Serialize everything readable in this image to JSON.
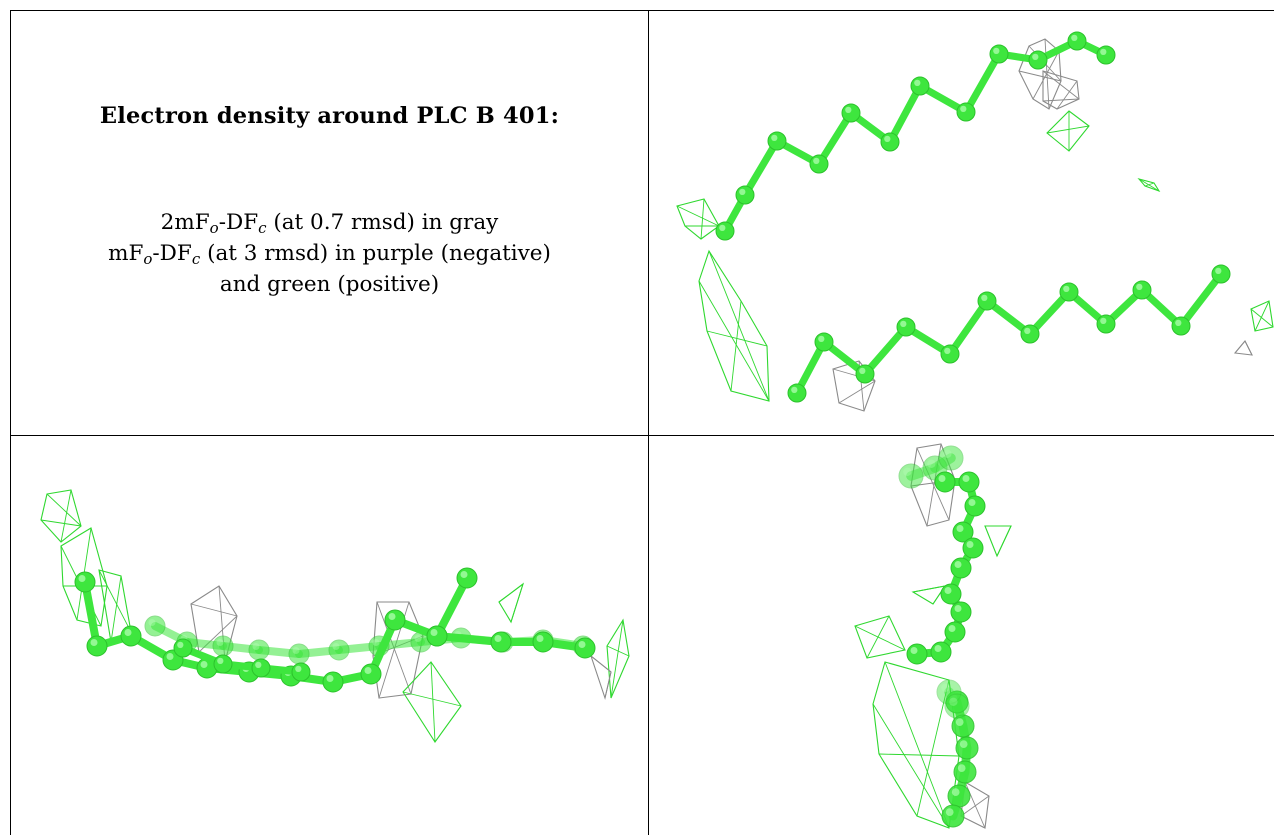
{
  "caption": {
    "title": "Electron density around PLC B 401:",
    "line1_a": "2mF",
    "line1_sub_o": "o",
    "line1_b": "-DF",
    "line1_sub_c": "c",
    "line1_c": " (at 0.7 rmsd) in gray",
    "line2_a": "mF",
    "line2_sub_o": "o",
    "line2_b": "-DF",
    "line2_sub_c": "c",
    "line2_c": " (at 3 rmsd) in purple (negative)",
    "line3": "and green (positive)"
  },
  "colors": {
    "atom": "#3ee63e",
    "bond": "#3ee63e",
    "mesh_positive": "#2fd82f",
    "mesh_gray": "#8a8a8a",
    "grid_line": "#000000"
  },
  "panels": [
    "molecule-view-top-right",
    "molecule-view-bottom-left",
    "molecule-view-bottom-right"
  ]
}
